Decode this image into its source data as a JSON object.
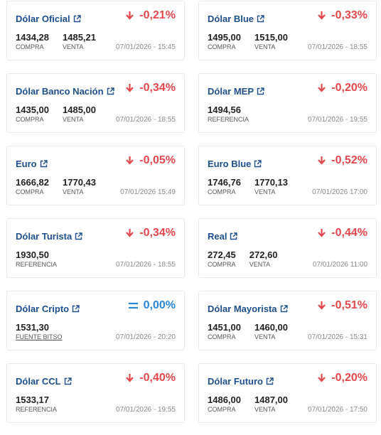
{
  "cards": [
    {
      "title": "Dólar Oficial",
      "change": "-0,21%",
      "quotes": [
        {
          "value": "1434,28",
          "label": "COMPRA"
        },
        {
          "value": "1485,21",
          "label": "VENTA"
        }
      ],
      "date": "07/01/2026 - 15:45"
    },
    {
      "title": "Dólar Blue",
      "change": "-0,33%",
      "quotes": [
        {
          "value": "1495,00",
          "label": "COMPRA"
        },
        {
          "value": "1515,00",
          "label": "VENTA"
        }
      ],
      "date": "07/01/2026 - 18:55"
    },
    {
      "title": "Dólar Banco Nación",
      "change": "-0,34%",
      "quotes": [
        {
          "value": "1435,00",
          "label": "COMPRA"
        },
        {
          "value": "1485,00",
          "label": "VENTA"
        }
      ],
      "date": "07/01/2026 - 18:55"
    },
    {
      "title": "Dólar MEP",
      "change": "-0,20%",
      "quotes": [
        {
          "value": "1494,56",
          "label": "REFERENCIA"
        }
      ],
      "date": "07/01/2026 - 19:55"
    },
    {
      "title": "Euro",
      "change": "-0,05%",
      "quotes": [
        {
          "value": "1666,82",
          "label": "COMPRA"
        },
        {
          "value": "1770,43",
          "label": "VENTA"
        }
      ],
      "date": "07/01/2026 15:49"
    },
    {
      "title": "Euro Blue",
      "change": "-0,52%",
      "quotes": [
        {
          "value": "1746,76",
          "label": "COMPRA"
        },
        {
          "value": "1770,13",
          "label": "VENTA"
        }
      ],
      "date": "07/01/2026 17:00"
    },
    {
      "title": "Dólar Turista",
      "change": "-0,34%",
      "quotes": [
        {
          "value": "1930,50",
          "label": "REFERENCIA"
        }
      ],
      "date": "07/01/2026 - 18:55"
    },
    {
      "title": "Real",
      "change": "-0,44%",
      "quotes": [
        {
          "value": "272,45",
          "label": "COMPRA"
        },
        {
          "value": "272,60",
          "label": "VENTA"
        }
      ],
      "date": "07/01/2026 11:00"
    },
    {
      "title": "Dólar Cripto",
      "change": "0,00%",
      "quotes": [
        {
          "value": "1531,30",
          "source": "FUENTE BITSO"
        }
      ],
      "date": "07/01/2026 - 20:20"
    },
    {
      "title": "Dólar Mayorista",
      "change": "-0,51%",
      "quotes": [
        {
          "value": "1451,00",
          "label": "COMPRA"
        },
        {
          "value": "1460,00",
          "label": "VENTA"
        }
      ],
      "date": "07/01/2026 - 15:31"
    },
    {
      "title": "Dólar CCL",
      "change": "-0,40%",
      "quotes": [
        {
          "value": "1533,17",
          "label": "REFERENCIA"
        }
      ],
      "date": "07/01/2026 - 19:55"
    },
    {
      "title": "Dólar Futuro",
      "change": "-0,20%",
      "quotes": [
        {
          "value": "1486,00",
          "label": "COMPRA"
        },
        {
          "value": "1487,00",
          "label": "VENTA"
        }
      ],
      "date": "07/01/2026 - 17:50"
    }
  ]
}
